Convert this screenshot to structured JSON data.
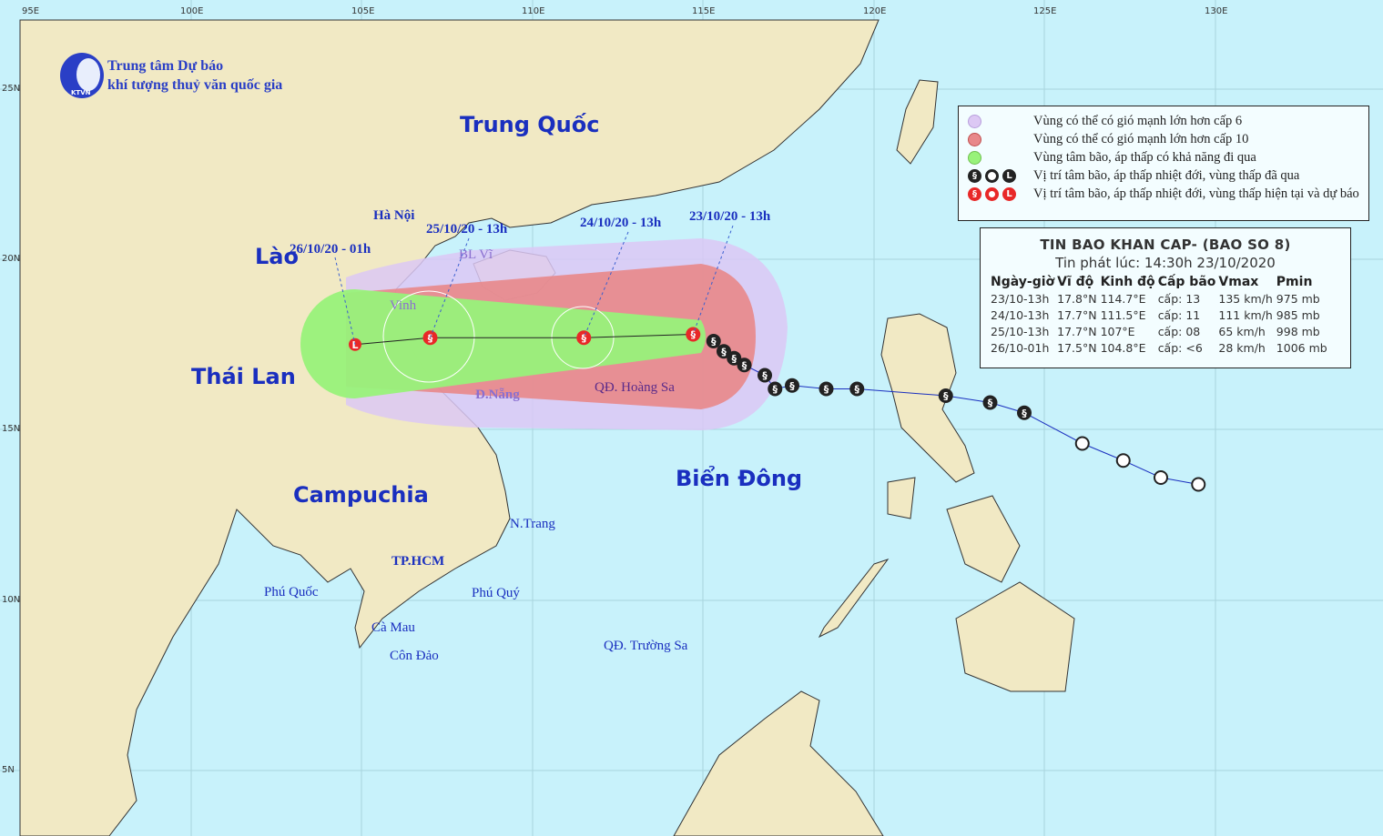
{
  "logo": {
    "line1": "Trung tâm Dự báo",
    "line2": "khí tượng thuỷ văn quốc gia",
    "badge": "KTVN"
  },
  "axes": {
    "lon_ticks": [
      "95E",
      "100E",
      "105E",
      "110E",
      "115E",
      "120E",
      "125E",
      "130E"
    ],
    "lat_ticks": [
      "25N",
      "20N",
      "15N",
      "10N",
      "5N"
    ]
  },
  "countries": [
    "Trung Quốc",
    "Lào",
    "Thái Lan",
    "Campuchia",
    "Biển Đông"
  ],
  "places": [
    "Hà Nội",
    "BL Vĩ",
    "Vinh",
    "Đ.Nẵng",
    "QĐ. Hoàng Sa",
    "N.Trang",
    "TP.HCM",
    "Phú Quốc",
    "Phú Quý",
    "Cà Mau",
    "Côn Đảo",
    "QĐ. Trường Sa"
  ],
  "track_labels": [
    "23/10/20 - 13h",
    "24/10/20 - 13h",
    "25/10/20 - 13h",
    "26/10/20 - 01h"
  ],
  "legend": [
    {
      "color": "#dcc8f4",
      "text": "Vùng có thể có gió mạnh lớn hơn cấp 6"
    },
    {
      "color": "#e8888a",
      "text": "Vùng có thể có gió mạnh lớn hơn cấp 10"
    },
    {
      "color": "#98f27a",
      "text": "Vùng tâm bão, áp thấp có khả năng đi qua"
    },
    {
      "color": "#222222",
      "text": "Vị trí tâm bão, áp thấp nhiệt đới, vùng thấp đã qua"
    },
    {
      "color": "#e82828",
      "text": "Vị trí tâm bão, áp thấp nhiệt đới, vùng thấp hiện tại và dự báo"
    }
  ],
  "info": {
    "title": "TIN BAO KHAN CAP- (BAO SO 8)",
    "issued": "Tin phát lúc: 14:30h 23/10/2020",
    "headers": [
      "Ngày-giờ",
      "Vĩ độ",
      "Kinh độ",
      "Cấp bão",
      "Vmax",
      "Pmin"
    ],
    "rows": [
      [
        "23/10-13h",
        "17.8°N",
        "114.7°E",
        "cấp: 13",
        "135 km/h",
        "975 mb"
      ],
      [
        "24/10-13h",
        "17.7°N",
        "111.5°E",
        "cấp: 11",
        "111 km/h",
        "985 mb"
      ],
      [
        "25/10-13h",
        "17.7°N",
        "107°E",
        "cấp: 08",
        "65 km/h",
        "998 mb"
      ],
      [
        "26/10-01h",
        "17.5°N",
        "104.8°E",
        "cấp: <6",
        "28 km/h",
        "1006 mb"
      ]
    ]
  },
  "forecast_track": [
    {
      "lon": 114.7,
      "lat": 17.8,
      "type": "storm"
    },
    {
      "lon": 111.5,
      "lat": 17.7,
      "type": "storm"
    },
    {
      "lon": 107.0,
      "lat": 17.7,
      "type": "storm"
    },
    {
      "lon": 104.8,
      "lat": 17.5,
      "type": "low"
    }
  ],
  "past_track": [
    {
      "lon": 129.5,
      "lat": 13.4,
      "type": "depression"
    },
    {
      "lon": 128.4,
      "lat": 13.6,
      "type": "depression"
    },
    {
      "lon": 127.3,
      "lat": 14.1,
      "type": "depression"
    },
    {
      "lon": 126.1,
      "lat": 14.6,
      "type": "depression"
    },
    {
      "lon": 124.4,
      "lat": 15.5,
      "type": "storm"
    },
    {
      "lon": 123.4,
      "lat": 15.8,
      "type": "storm"
    },
    {
      "lon": 122.1,
      "lat": 16.0,
      "type": "storm"
    },
    {
      "lon": 119.5,
      "lat": 16.2,
      "type": "storm"
    },
    {
      "lon": 118.6,
      "lat": 16.2,
      "type": "storm"
    },
    {
      "lon": 117.6,
      "lat": 16.3,
      "type": "storm"
    },
    {
      "lon": 117.1,
      "lat": 16.2,
      "type": "storm"
    },
    {
      "lon": 116.8,
      "lat": 16.6,
      "type": "storm"
    },
    {
      "lon": 116.2,
      "lat": 16.9,
      "type": "storm"
    },
    {
      "lon": 115.9,
      "lat": 17.1,
      "type": "storm"
    },
    {
      "lon": 115.6,
      "lat": 17.3,
      "type": "storm"
    },
    {
      "lon": 115.3,
      "lat": 17.6,
      "type": "storm"
    }
  ]
}
